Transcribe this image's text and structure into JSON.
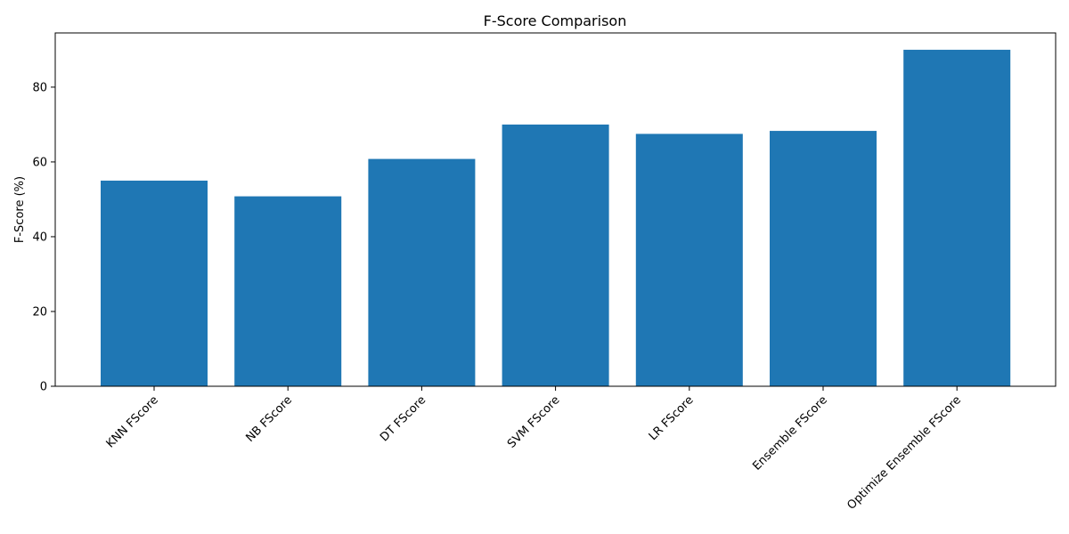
{
  "chart_data": {
    "type": "bar",
    "title": "F-Score Comparison",
    "xlabel": "",
    "ylabel": "F-Score (%)",
    "categories": [
      "KNN FScore",
      "NB FScore",
      "DT FScore",
      "SVM FScore",
      "LR FScore",
      "Ensemble FScore",
      "Optimize Ensemble FScore"
    ],
    "values": [
      55.0,
      50.8,
      60.8,
      70.0,
      67.5,
      68.3,
      90.0
    ],
    "ylim": [
      0,
      94.5
    ],
    "yticks": [
      0,
      20,
      40,
      60,
      80
    ],
    "grid": false,
    "bar_color": "#1f77b4",
    "xtick_rotation": 45
  }
}
